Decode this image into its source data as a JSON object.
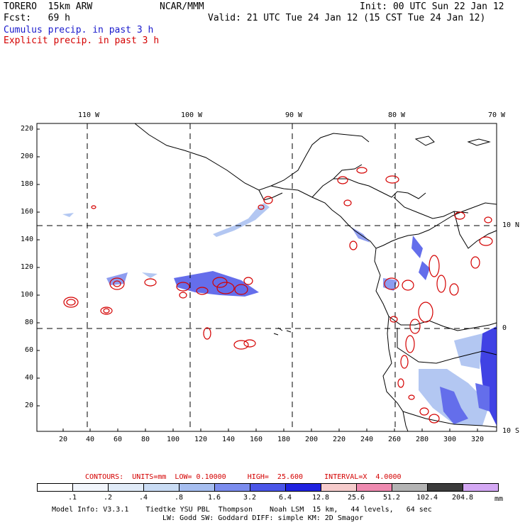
{
  "header": {
    "model": "TORERO  15km ARW",
    "org": "NCAR/MMM",
    "init": "Init: 00 UTC Sun 22 Jan 12",
    "fcst": "Fcst:   69 h",
    "valid": "Valid: 21 UTC Tue 24 Jan 12 (15 CST Tue 24 Jan 12)",
    "field1": "Cumulus precip. in past 3 h",
    "field2": "Explicit precip. in past 3 h"
  },
  "axes": {
    "y_ticks": [
      "220",
      "200",
      "180",
      "160",
      "140",
      "120",
      "100",
      "80",
      "60",
      "40",
      "20"
    ],
    "x_ticks": [
      "20",
      "40",
      "60",
      "80",
      "100",
      "120",
      "140",
      "160",
      "180",
      "200",
      "220",
      "240",
      "260",
      "280",
      "300",
      "320"
    ],
    "lon_labels": [
      "110 W",
      "100 W",
      "90 W",
      "80 W",
      "70 W"
    ],
    "lat_labels": [
      "10 N",
      "0",
      "10 S"
    ]
  },
  "contour_info": {
    "text": "CONTOURS:  UNITS=mm  LOW= 0.10000     HIGH=  25.600     INTERVAL=X  4.0000"
  },
  "colorbar": {
    "labels": [
      ".1",
      ".2",
      ".4",
      ".8",
      "1.6",
      "3.2",
      "6.4",
      "12.8",
      "25.6",
      "51.2",
      "102.4",
      "204.8"
    ],
    "unit": "mm",
    "colors": [
      "#ffffff",
      "#f2f6fc",
      "#e0ebf8",
      "#c9dcf4",
      "#a6bef0",
      "#7b8cee",
      "#4a55e8",
      "#1f22e0",
      "#f6cccc",
      "#ef8ab0",
      "#b4b4b4",
      "#3c3c3c",
      "#d4a8f4"
    ]
  },
  "footer": {
    "line1": "Model Info: V3.3.1    Tiedtke YSU PBL  Thompson    Noah LSM  15 km,   44 levels,   64 sec",
    "line2": "LW: Godd SW: Goddard DIFF: simple KM: 2D Smagor"
  }
}
